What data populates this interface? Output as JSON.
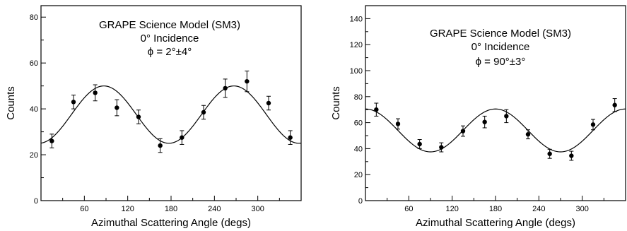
{
  "chart_data": [
    {
      "type": "scatter",
      "annotations": [
        "GRAPE Science Model (SM3)",
        "0° Incidence",
        "ϕ = 2°±4°"
      ],
      "xlabel": "Azimuthal Scattering Angle (degs)",
      "ylabel": "Counts",
      "xlim": [
        0,
        360
      ],
      "ylim": [
        0,
        85
      ],
      "xticks": [
        60,
        120,
        180,
        240,
        300
      ],
      "yticks": [
        0,
        20,
        40,
        60,
        80
      ],
      "grid": false,
      "points": [
        {
          "x": 15,
          "y": 26,
          "err": 3
        },
        {
          "x": 45,
          "y": 43,
          "err": 3
        },
        {
          "x": 75,
          "y": 47,
          "err": 3.5
        },
        {
          "x": 105,
          "y": 40.5,
          "err": 3.5
        },
        {
          "x": 135,
          "y": 36.5,
          "err": 3
        },
        {
          "x": 165,
          "y": 24,
          "err": 3
        },
        {
          "x": 195,
          "y": 27.5,
          "err": 3
        },
        {
          "x": 225,
          "y": 38.5,
          "err": 3
        },
        {
          "x": 255,
          "y": 49,
          "err": 4
        },
        {
          "x": 285,
          "y": 52,
          "err": 4.5
        },
        {
          "x": 315,
          "y": 42.5,
          "err": 3
        },
        {
          "x": 345,
          "y": 27.5,
          "err": 3
        }
      ],
      "fit": {
        "mean": 37.5,
        "amplitude": 12.5,
        "phase_deg": 87
      }
    },
    {
      "type": "scatter",
      "annotations": [
        "GRAPE Science Model (SM3)",
        "0° Incidence",
        "ϕ = 90°±3°"
      ],
      "xlabel": "Azimuthal Scattering Angle (degs)",
      "ylabel": "Counts",
      "xlim": [
        0,
        360
      ],
      "ylim": [
        0,
        150
      ],
      "xticks": [
        60,
        120,
        180,
        240,
        300
      ],
      "yticks": [
        0,
        20,
        40,
        60,
        80,
        100,
        120,
        140
      ],
      "grid": false,
      "points": [
        {
          "x": 15,
          "y": 70,
          "err": 5
        },
        {
          "x": 45,
          "y": 59,
          "err": 4
        },
        {
          "x": 75,
          "y": 43.5,
          "err": 3.5
        },
        {
          "x": 105,
          "y": 41,
          "err": 3.5
        },
        {
          "x": 135,
          "y": 53.5,
          "err": 4
        },
        {
          "x": 165,
          "y": 60.5,
          "err": 4.5
        },
        {
          "x": 195,
          "y": 65,
          "err": 5
        },
        {
          "x": 225,
          "y": 51,
          "err": 3.5
        },
        {
          "x": 255,
          "y": 36,
          "err": 3.5
        },
        {
          "x": 285,
          "y": 34.5,
          "err": 3.5
        },
        {
          "x": 315,
          "y": 58.5,
          "err": 4
        },
        {
          "x": 345,
          "y": 73.5,
          "err": 5
        }
      ],
      "fit": {
        "mean": 54,
        "amplitude": 16.5,
        "phase_deg": 180
      }
    }
  ]
}
